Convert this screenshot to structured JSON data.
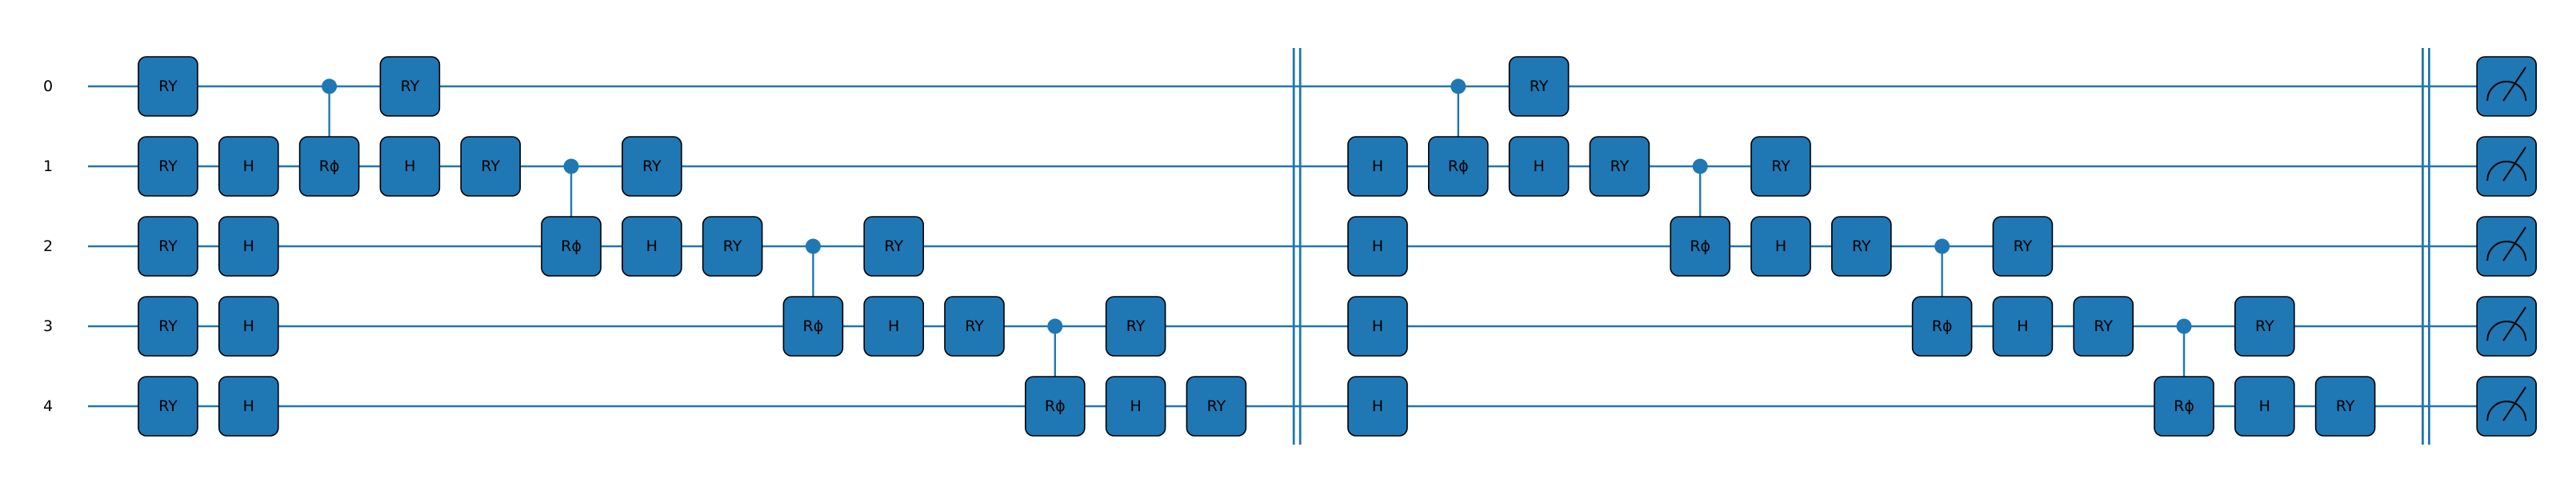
{
  "colors": {
    "wire": "#1f77b4",
    "gate_fill": "#1f77b4",
    "gate_border": "#000000",
    "text": "#000000",
    "background": "#ffffff"
  },
  "qubits": [
    "0",
    "1",
    "2",
    "3",
    "4"
  ],
  "gates": [
    {
      "col": 0,
      "q": 0,
      "label": "RY"
    },
    {
      "col": 0,
      "q": 1,
      "label": "RY"
    },
    {
      "col": 0,
      "q": 2,
      "label": "RY"
    },
    {
      "col": 0,
      "q": 3,
      "label": "RY"
    },
    {
      "col": 0,
      "q": 4,
      "label": "RY"
    },
    {
      "col": 1,
      "q": 1,
      "label": "H"
    },
    {
      "col": 1,
      "q": 2,
      "label": "H"
    },
    {
      "col": 1,
      "q": 3,
      "label": "H"
    },
    {
      "col": 1,
      "q": 4,
      "label": "H"
    },
    {
      "col": 2,
      "q": 1,
      "label": "Rϕ"
    },
    {
      "col": 3,
      "q": 0,
      "label": "RY"
    },
    {
      "col": 3,
      "q": 1,
      "label": "H"
    },
    {
      "col": 4,
      "q": 1,
      "label": "RY"
    },
    {
      "col": 5,
      "q": 2,
      "label": "Rϕ"
    },
    {
      "col": 6,
      "q": 1,
      "label": "RY"
    },
    {
      "col": 6,
      "q": 2,
      "label": "H"
    },
    {
      "col": 7,
      "q": 2,
      "label": "RY"
    },
    {
      "col": 8,
      "q": 3,
      "label": "Rϕ"
    },
    {
      "col": 9,
      "q": 2,
      "label": "RY"
    },
    {
      "col": 9,
      "q": 3,
      "label": "H"
    },
    {
      "col": 10,
      "q": 3,
      "label": "RY"
    },
    {
      "col": 11,
      "q": 4,
      "label": "Rϕ"
    },
    {
      "col": 12,
      "q": 3,
      "label": "RY"
    },
    {
      "col": 12,
      "q": 4,
      "label": "H"
    },
    {
      "col": 13,
      "q": 4,
      "label": "RY"
    },
    {
      "col": 15,
      "q": 1,
      "label": "H"
    },
    {
      "col": 15,
      "q": 2,
      "label": "H"
    },
    {
      "col": 15,
      "q": 3,
      "label": "H"
    },
    {
      "col": 15,
      "q": 4,
      "label": "H"
    },
    {
      "col": 16,
      "q": 1,
      "label": "Rϕ"
    },
    {
      "col": 17,
      "q": 0,
      "label": "RY"
    },
    {
      "col": 17,
      "q": 1,
      "label": "H"
    },
    {
      "col": 18,
      "q": 1,
      "label": "RY"
    },
    {
      "col": 19,
      "q": 2,
      "label": "Rϕ"
    },
    {
      "col": 20,
      "q": 1,
      "label": "RY"
    },
    {
      "col": 20,
      "q": 2,
      "label": "H"
    },
    {
      "col": 21,
      "q": 2,
      "label": "RY"
    },
    {
      "col": 22,
      "q": 3,
      "label": "Rϕ"
    },
    {
      "col": 23,
      "q": 2,
      "label": "RY"
    },
    {
      "col": 23,
      "q": 3,
      "label": "H"
    },
    {
      "col": 24,
      "q": 3,
      "label": "RY"
    },
    {
      "col": 25,
      "q": 4,
      "label": "Rϕ"
    },
    {
      "col": 26,
      "q": 3,
      "label": "RY"
    },
    {
      "col": 26,
      "q": 4,
      "label": "H"
    },
    {
      "col": 27,
      "q": 4,
      "label": "RY"
    }
  ],
  "controls": [
    {
      "col": 2,
      "control": 0,
      "target": 1
    },
    {
      "col": 5,
      "control": 1,
      "target": 2
    },
    {
      "col": 8,
      "control": 2,
      "target": 3
    },
    {
      "col": 11,
      "control": 3,
      "target": 4
    },
    {
      "col": 16,
      "control": 0,
      "target": 1
    },
    {
      "col": 19,
      "control": 1,
      "target": 2
    },
    {
      "col": 22,
      "control": 2,
      "target": 3
    },
    {
      "col": 25,
      "control": 3,
      "target": 4
    }
  ],
  "barriers": [
    14,
    28
  ],
  "measurements": {
    "col": 29,
    "qubits": [
      0,
      1,
      2,
      3,
      4
    ]
  }
}
